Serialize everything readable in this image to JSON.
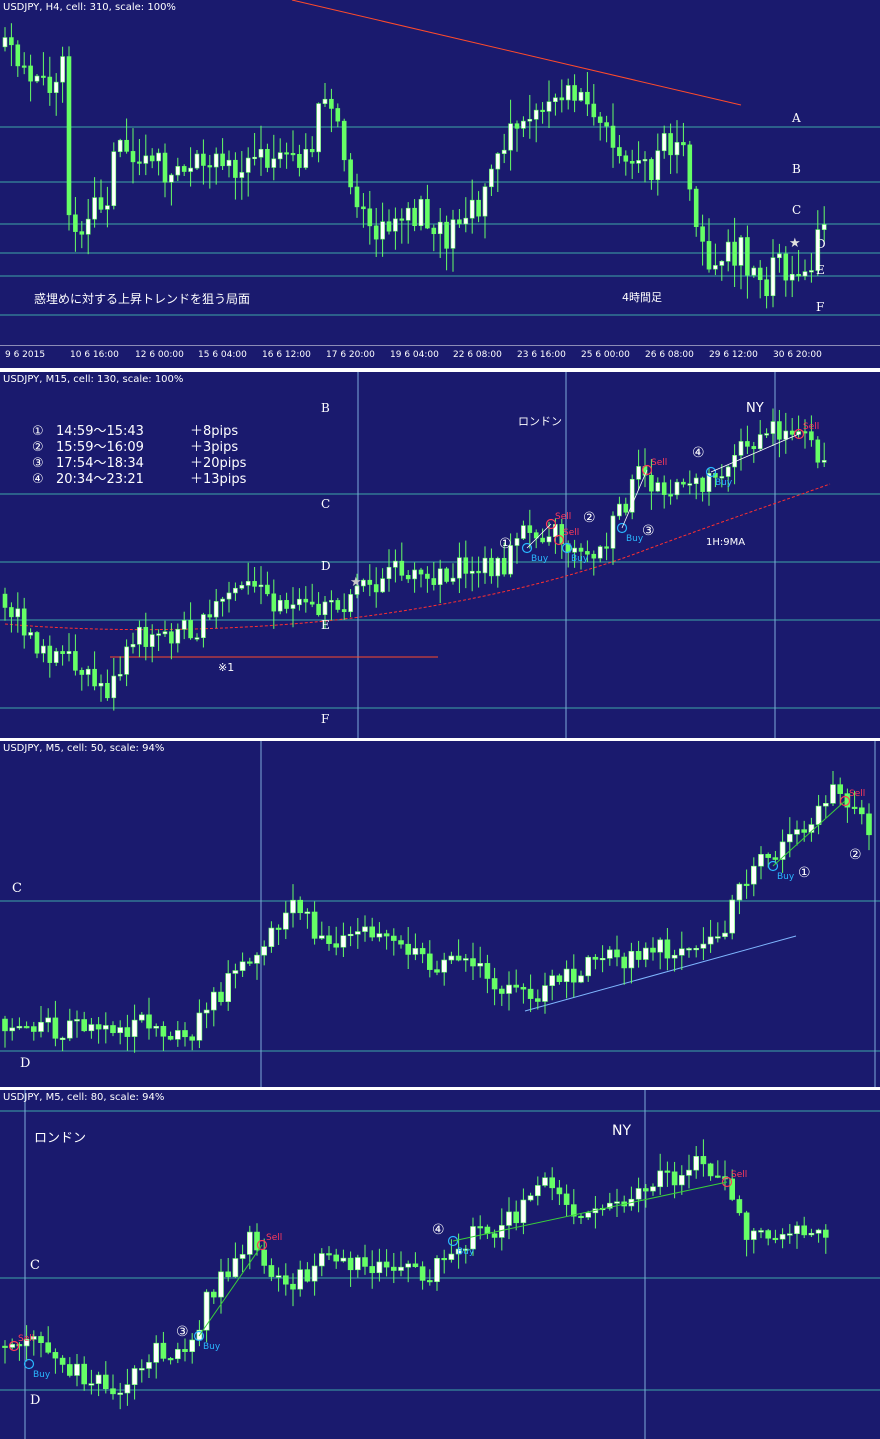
{
  "panels": {
    "h4": {
      "title": "USDJPY, H4, cell: 310, scale: 100%",
      "note": "惑埋めに対する上昇トレンドを狙う局面",
      "timeframe_note": "4時間足",
      "levels": [
        "A",
        "B",
        "C",
        "D",
        "E",
        "F"
      ],
      "x_ticks": [
        "9 6 2015",
        "10 6 16:00",
        "12 6 00:00",
        "15 6 04:00",
        "16 6 12:00",
        "17 6 20:00",
        "19 6 04:00",
        "22 6 08:00",
        "23 6 16:00",
        "25 6 00:00",
        "26 6 08:00",
        "29 6 12:00",
        "30 6 20:00"
      ]
    },
    "m15": {
      "title": "USDJPY, M15, cell: 130, scale: 100%",
      "london": "ロンドン",
      "ny": "NY",
      "ma_label": "1H:9MA",
      "remark": "※1",
      "levels": [
        "B",
        "C",
        "D",
        "E",
        "F"
      ],
      "trades": [
        {
          "num": "①",
          "time": "14:59～15:43",
          "pips": "＋8pips"
        },
        {
          "num": "②",
          "time": "15:59～16:09",
          "pips": "＋3pips"
        },
        {
          "num": "③",
          "time": "17:54～18:34",
          "pips": "＋20pips"
        },
        {
          "num": "④",
          "time": "20:34～23:21",
          "pips": "＋13pips"
        }
      ]
    },
    "m5a": {
      "title": "USDJPY, M5, cell: 50, scale: 94%",
      "levels": [
        "C",
        "D"
      ]
    },
    "m5b": {
      "title": "USDJPY, M5, cell: 80, scale: 94%",
      "london": "ロンドン",
      "ny": "NY",
      "levels": [
        "C",
        "D"
      ]
    }
  },
  "labels": {
    "buy": "Buy",
    "sell": "Sell",
    "star": "★"
  },
  "colors": {
    "background": "#1a1a6e",
    "bull": "#ffffff",
    "bear": "#66ff66",
    "level_line": "#3fa7a7",
    "trend_line": "#ff4b2b",
    "ma": "#ff3030",
    "buy": "#2ab7ff",
    "sell": "#ff3a5a",
    "support": "#7fb6ff"
  },
  "chart_data": [
    {
      "type": "candlestick",
      "title": "USDJPY, H4, cell: 310, scale: 100%",
      "levels": [
        "A",
        "B",
        "C",
        "D",
        "E",
        "F"
      ],
      "x": [
        "9 6 2015",
        "10 6 16:00",
        "12 6 00:00",
        "15 6 04:00",
        "16 6 12:00",
        "17 6 20:00",
        "19 6 04:00",
        "22 6 08:00",
        "23 6 16:00",
        "25 6 00:00",
        "26 6 08:00",
        "29 6 12:00",
        "30 6 20:00"
      ],
      "annotations": [
        "惑埋めに対する上昇トレンドを狙う局面",
        "4時間足",
        "★"
      ]
    },
    {
      "type": "candlestick",
      "title": "USDJPY, M15, cell: 130, scale: 100%",
      "levels": [
        "B",
        "C",
        "D",
        "E",
        "F"
      ],
      "annotations": [
        "ロンドン",
        "NY",
        "1H:9MA",
        "※1",
        "①",
        "②",
        "③",
        "④",
        "Buy",
        "Sell"
      ]
    },
    {
      "type": "candlestick",
      "title": "USDJPY, M5, cell: 50, scale: 94%",
      "levels": [
        "C",
        "D"
      ],
      "annotations": [
        "①",
        "②",
        "Buy",
        "Sell"
      ]
    },
    {
      "type": "candlestick",
      "title": "USDJPY, M5, cell: 80, scale: 94%",
      "levels": [
        "C",
        "D"
      ],
      "annotations": [
        "ロンドン",
        "NY",
        "③",
        "④",
        "Buy",
        "Sell"
      ]
    }
  ]
}
